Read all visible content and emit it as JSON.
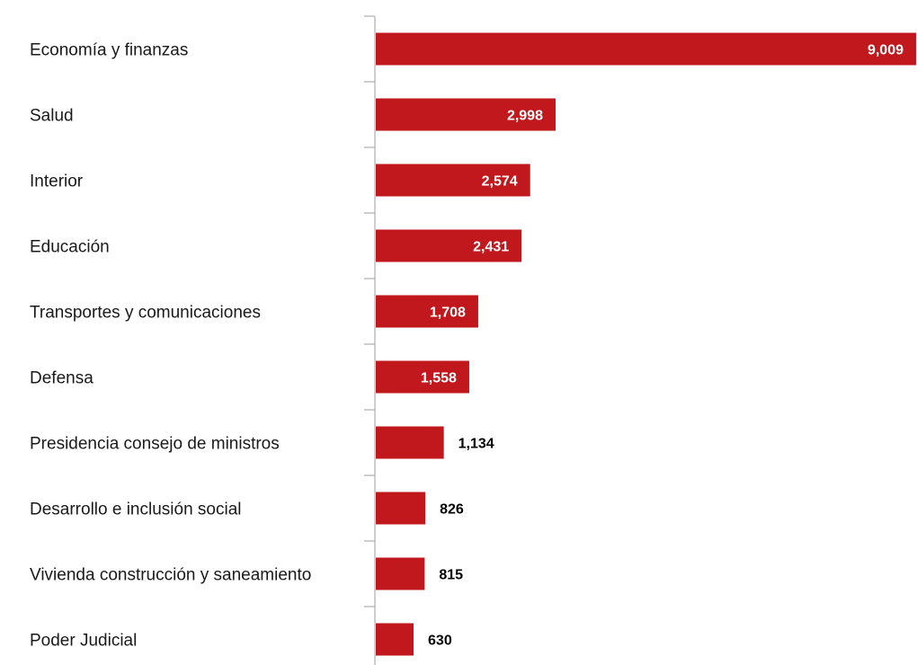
{
  "colors": {
    "bar": "#c0181c",
    "axis": "#b3b3b3",
    "label_inside": "#ffffff",
    "label_outside": "#000000",
    "text": "#1a1a1a"
  },
  "chart_data": {
    "type": "bar",
    "orientation": "horizontal",
    "title": "",
    "xlabel": "",
    "ylabel": "",
    "grid": false,
    "legend": "none",
    "xlim": [
      0,
      9009
    ],
    "categories": [
      "Economía y finanzas",
      "Salud",
      "Interior",
      "Educación",
      "Transportes y comunicaciones",
      "Defensa",
      "Presidencia consejo de ministros",
      "Desarrollo e inclusión social",
      "Vivienda construcción y saneamiento",
      "Poder Judicial"
    ],
    "values": [
      9009,
      2998,
      2574,
      2431,
      1708,
      1558,
      1134,
      826,
      815,
      630
    ],
    "data_labels": [
      "9,009",
      "2,998",
      "2,574",
      "2,431",
      "1,708",
      "1,558",
      "1,134",
      "826",
      "815",
      "630"
    ]
  }
}
